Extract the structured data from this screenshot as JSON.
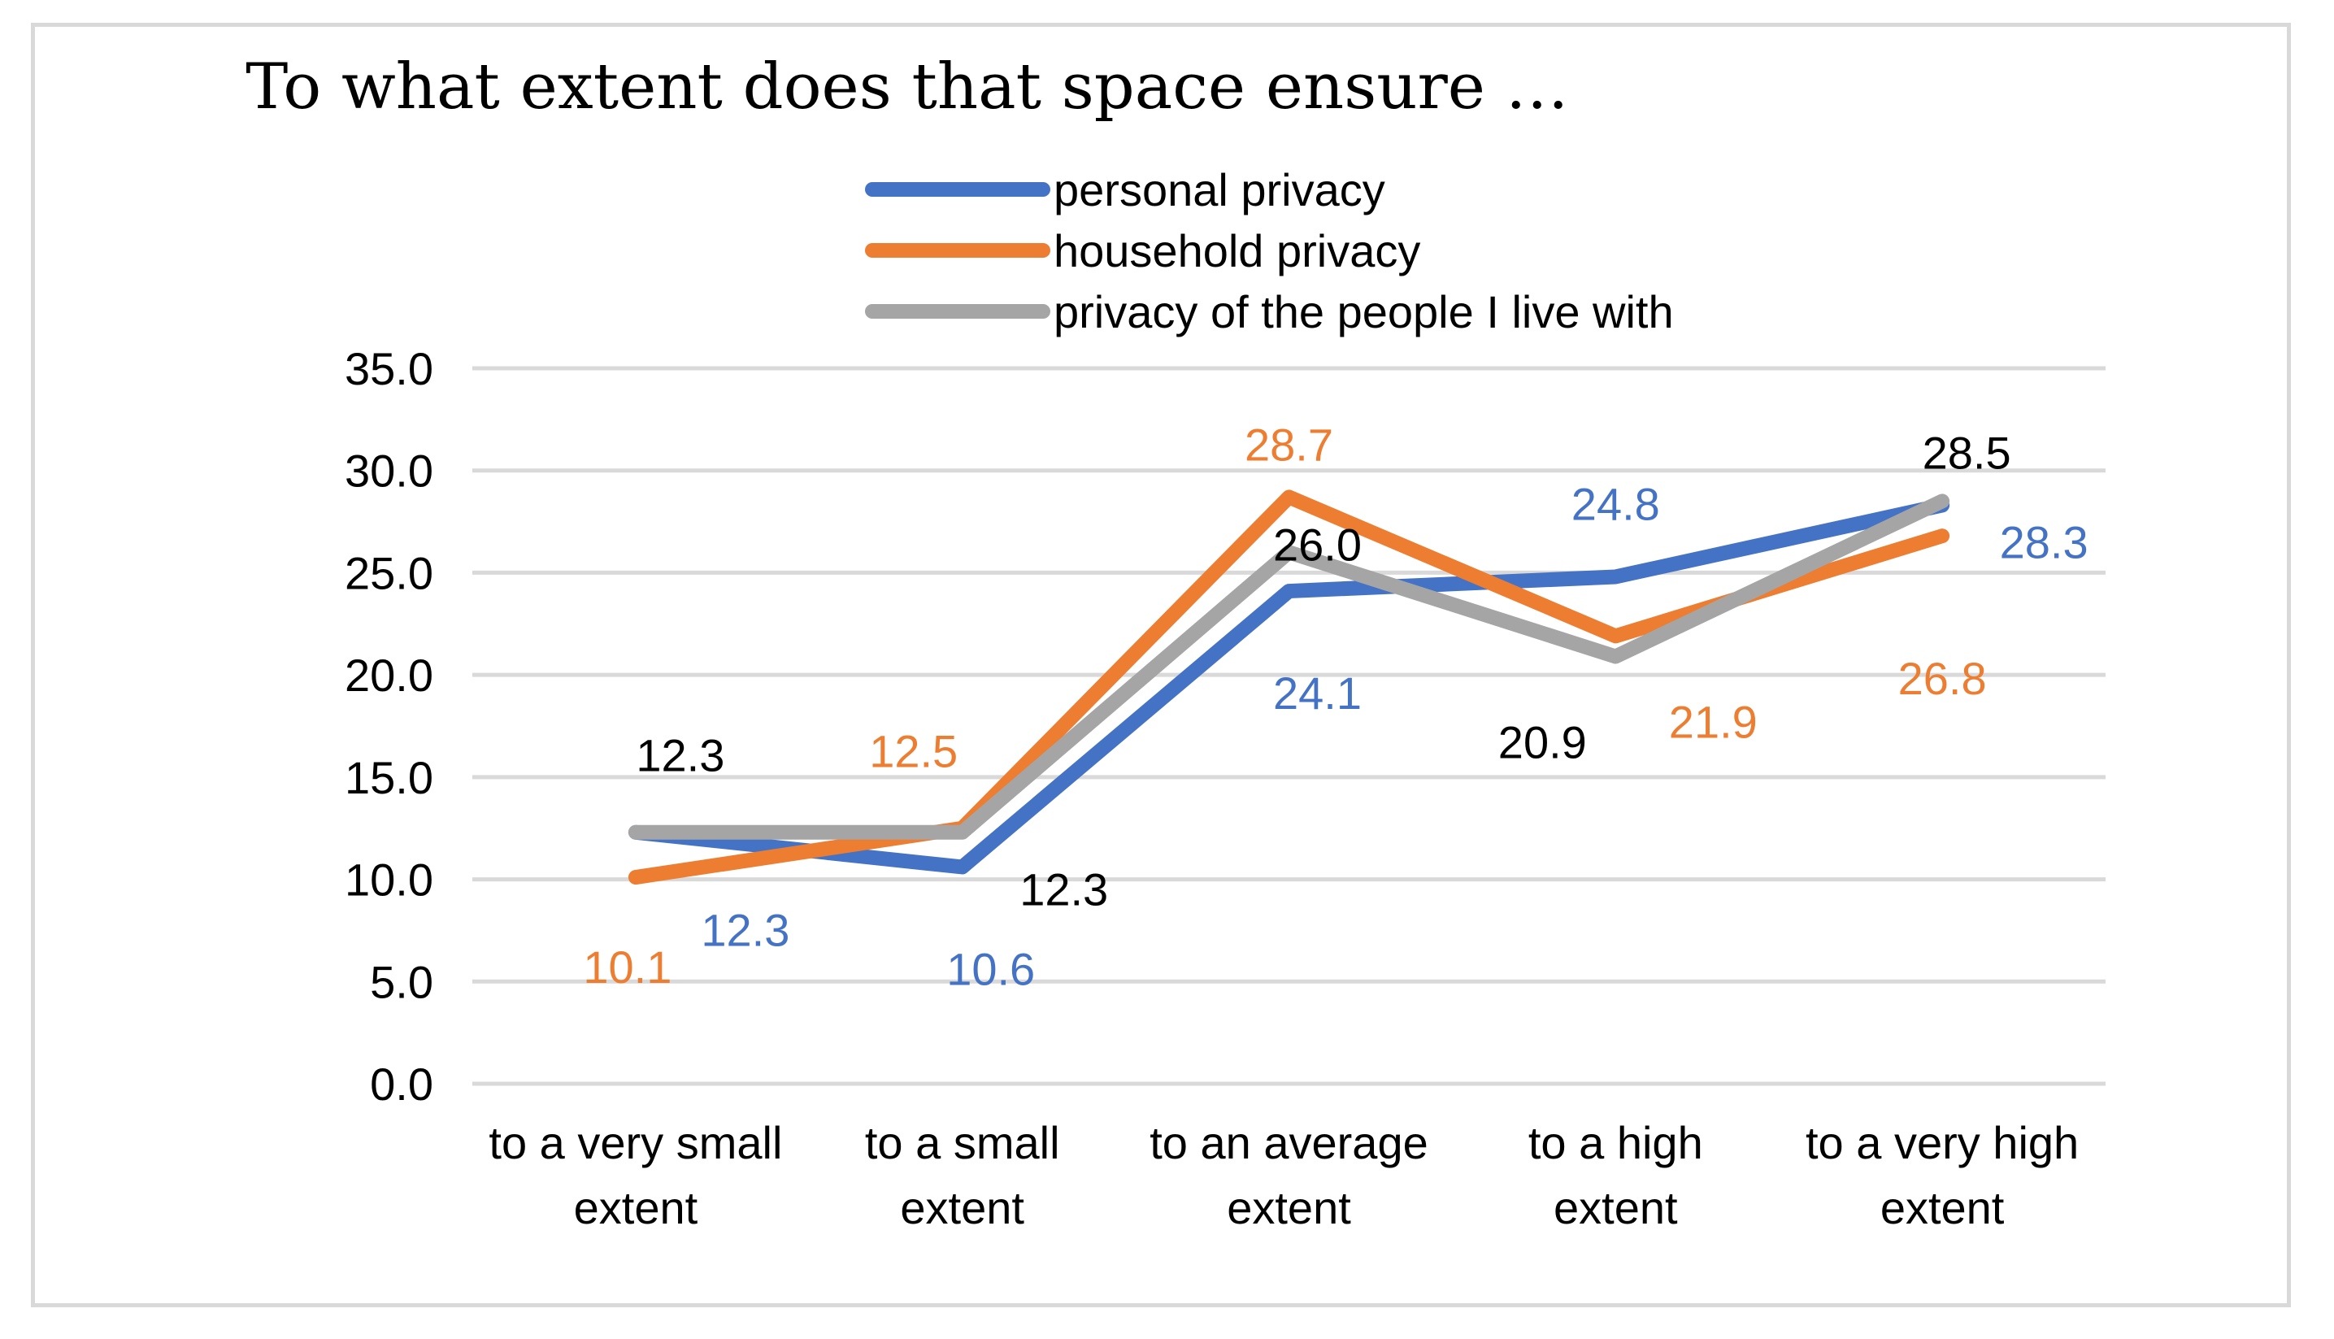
{
  "chart_data": {
    "type": "line",
    "title": "To what extent does that space ensure …",
    "categories": [
      [
        "to a very small",
        "extent"
      ],
      [
        "to a small",
        "extent"
      ],
      [
        "to an average",
        "extent"
      ],
      [
        "to a high",
        "extent"
      ],
      [
        "to a very high",
        "extent"
      ]
    ],
    "ylim": [
      0,
      35
    ],
    "yticks": [
      "0.0",
      "5.0",
      "10.0",
      "15.0",
      "20.0",
      "25.0",
      "30.0",
      "35.0"
    ],
    "grid": true,
    "legend_position": "top",
    "series": [
      {
        "name": "personal privacy",
        "color": "#4472c4",
        "values": [
          12.3,
          10.6,
          24.1,
          24.8,
          28.3
        ],
        "labels": [
          "12.3",
          "10.6",
          "24.1",
          "24.8",
          "28.3"
        ]
      },
      {
        "name": "household privacy",
        "color": "#ed7d31",
        "values": [
          10.1,
          12.5,
          28.7,
          21.9,
          26.8
        ],
        "labels": [
          "10.1",
          "12.5",
          "28.7",
          "21.9",
          "26.8"
        ]
      },
      {
        "name": "privacy of the people I live with",
        "color": "#a5a5a5",
        "label_color": "#000000",
        "values": [
          12.3,
          12.3,
          26.0,
          20.9,
          28.5
        ],
        "labels": [
          "12.3",
          "12.3",
          "26.0",
          "20.9",
          "28.5"
        ]
      }
    ]
  }
}
